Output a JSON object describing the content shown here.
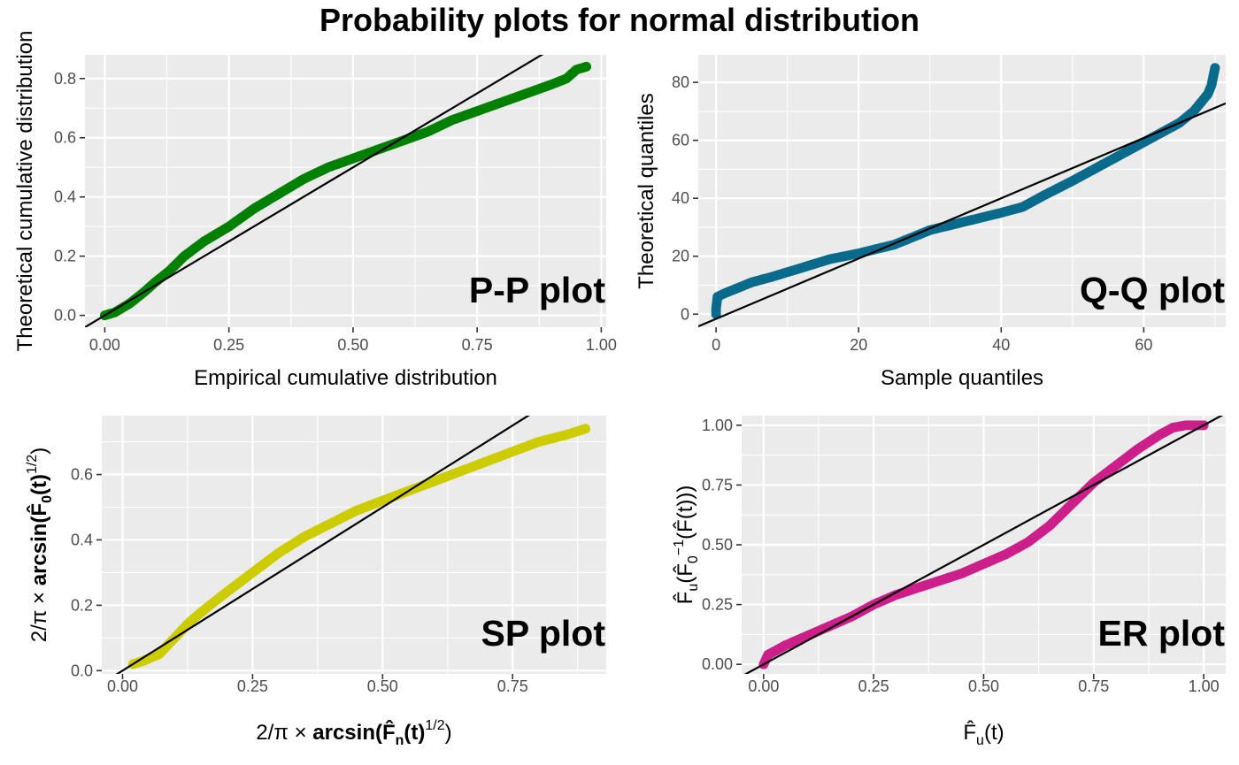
{
  "title": "Probability plots for normal distribution",
  "colors": {
    "panel_bg": "#ebebeb",
    "grid": "#ffffff",
    "reference_line": "#000000"
  },
  "chart_data": [
    {
      "type": "scatter",
      "panel_label": "P-P plot",
      "xlabel": "Empirical cumulative distribution",
      "ylabel": "Theoretical cumulative distribution",
      "xlim": [
        -0.04,
        1.01
      ],
      "ylim": [
        -0.04,
        0.88
      ],
      "x_ticks": [
        0,
        0.25,
        0.5,
        0.75,
        1
      ],
      "x_tick_labels": [
        "0.00",
        "0.25",
        "0.50",
        "0.75",
        "1.00"
      ],
      "y_ticks": [
        0,
        0.2,
        0.4,
        0.6,
        0.8
      ],
      "y_tick_labels": [
        "0.0",
        "0.2",
        "0.4",
        "0.6",
        "0.8"
      ],
      "point_color": "#008000",
      "reference_line": {
        "intercept": 0,
        "slope": 1
      },
      "points": [
        [
          0,
          0
        ],
        [
          0.02,
          0.01
        ],
        [
          0.05,
          0.04
        ],
        [
          0.08,
          0.08
        ],
        [
          0.1,
          0.11
        ],
        [
          0.13,
          0.15
        ],
        [
          0.16,
          0.2
        ],
        [
          0.2,
          0.25
        ],
        [
          0.25,
          0.3
        ],
        [
          0.3,
          0.36
        ],
        [
          0.35,
          0.41
        ],
        [
          0.4,
          0.46
        ],
        [
          0.45,
          0.5
        ],
        [
          0.5,
          0.53
        ],
        [
          0.55,
          0.56
        ],
        [
          0.6,
          0.59
        ],
        [
          0.65,
          0.62
        ],
        [
          0.7,
          0.66
        ],
        [
          0.75,
          0.69
        ],
        [
          0.8,
          0.72
        ],
        [
          0.85,
          0.75
        ],
        [
          0.9,
          0.78
        ],
        [
          0.93,
          0.8
        ],
        [
          0.95,
          0.83
        ],
        [
          0.97,
          0.84
        ]
      ]
    },
    {
      "type": "scatter",
      "panel_label": "Q-Q plot",
      "xlabel": "Sample quantiles",
      "ylabel": "Theoretical quantiles",
      "xlim": [
        -2.5,
        71.5
      ],
      "ylim": [
        -4.5,
        89.5
      ],
      "x_ticks": [
        0,
        20,
        40,
        60
      ],
      "x_tick_labels": [
        "0",
        "20",
        "40",
        "60"
      ],
      "y_ticks": [
        0,
        20,
        40,
        60,
        80
      ],
      "y_tick_labels": [
        "0",
        "20",
        "40",
        "60",
        "80"
      ],
      "point_color": "#0a6a8c",
      "reference_line": {
        "intercept": -1.6,
        "slope": 1.04
      },
      "points": [
        [
          0,
          0
        ],
        [
          0,
          2
        ],
        [
          0.1,
          4
        ],
        [
          0.2,
          6
        ],
        [
          1,
          7
        ],
        [
          3,
          9
        ],
        [
          5,
          11
        ],
        [
          8,
          13
        ],
        [
          12,
          16
        ],
        [
          16,
          19
        ],
        [
          20,
          21
        ],
        [
          25,
          24
        ],
        [
          30,
          29
        ],
        [
          35,
          32
        ],
        [
          40,
          35
        ],
        [
          43,
          37
        ],
        [
          46,
          41
        ],
        [
          50,
          46
        ],
        [
          53,
          50
        ],
        [
          56,
          54
        ],
        [
          59,
          58
        ],
        [
          62,
          62
        ],
        [
          65,
          66
        ],
        [
          67,
          70
        ],
        [
          68,
          73
        ],
        [
          69,
          76
        ],
        [
          69.5,
          79
        ],
        [
          70,
          85
        ]
      ]
    },
    {
      "type": "scatter",
      "panel_label": "SP plot",
      "xlabel": "2/π × arcsin(F̂n(t)^1/2)",
      "ylabel": "2/π × arcsin(F̂0(t)^1/2)",
      "xlim": [
        -0.04,
        0.93
      ],
      "ylim": [
        -0.01,
        0.78
      ],
      "x_ticks": [
        0,
        0.25,
        0.5,
        0.75
      ],
      "x_tick_labels": [
        "0.00",
        "0.25",
        "0.50",
        "0.75"
      ],
      "y_ticks": [
        0,
        0.2,
        0.4,
        0.6
      ],
      "y_tick_labels": [
        "0.0",
        "0.2",
        "0.4",
        "0.6"
      ],
      "point_color": "#cccc00",
      "reference_line": {
        "intercept": 0,
        "slope": 1
      },
      "points": [
        [
          0.02,
          0.02
        ],
        [
          0.04,
          0.03
        ],
        [
          0.07,
          0.05
        ],
        [
          0.1,
          0.1
        ],
        [
          0.13,
          0.15
        ],
        [
          0.16,
          0.19
        ],
        [
          0.2,
          0.24
        ],
        [
          0.25,
          0.3
        ],
        [
          0.3,
          0.36
        ],
        [
          0.35,
          0.41
        ],
        [
          0.4,
          0.45
        ],
        [
          0.45,
          0.49
        ],
        [
          0.5,
          0.52
        ],
        [
          0.55,
          0.55
        ],
        [
          0.6,
          0.58
        ],
        [
          0.65,
          0.61
        ],
        [
          0.7,
          0.64
        ],
        [
          0.75,
          0.67
        ],
        [
          0.8,
          0.7
        ],
        [
          0.85,
          0.72
        ],
        [
          0.87,
          0.73
        ],
        [
          0.89,
          0.74
        ]
      ]
    },
    {
      "type": "scatter",
      "panel_label": "ER plot",
      "xlabel": "F̂u(t)",
      "ylabel": "F̂u(F̂0⁻¹(F̂(t)))",
      "xlim": [
        -0.05,
        1.05
      ],
      "ylim": [
        -0.04,
        1.04
      ],
      "x_ticks": [
        0,
        0.25,
        0.5,
        0.75,
        1
      ],
      "x_tick_labels": [
        "0.00",
        "0.25",
        "0.50",
        "0.75",
        "1.00"
      ],
      "y_ticks": [
        0,
        0.25,
        0.5,
        0.75,
        1
      ],
      "y_tick_labels": [
        "0.00",
        "0.25",
        "0.50",
        "0.75",
        "1.00"
      ],
      "point_color": "#cc1f8a",
      "reference_line": {
        "intercept": 0,
        "slope": 1
      },
      "points": [
        [
          0,
          0
        ],
        [
          0.01,
          0.04
        ],
        [
          0.05,
          0.08
        ],
        [
          0.1,
          0.12
        ],
        [
          0.15,
          0.16
        ],
        [
          0.2,
          0.2
        ],
        [
          0.25,
          0.25
        ],
        [
          0.3,
          0.29
        ],
        [
          0.35,
          0.32
        ],
        [
          0.4,
          0.35
        ],
        [
          0.45,
          0.38
        ],
        [
          0.5,
          0.42
        ],
        [
          0.55,
          0.46
        ],
        [
          0.6,
          0.51
        ],
        [
          0.65,
          0.58
        ],
        [
          0.7,
          0.67
        ],
        [
          0.75,
          0.76
        ],
        [
          0.8,
          0.83
        ],
        [
          0.85,
          0.9
        ],
        [
          0.9,
          0.96
        ],
        [
          0.93,
          0.99
        ],
        [
          0.96,
          1
        ],
        [
          1,
          1
        ]
      ]
    }
  ]
}
